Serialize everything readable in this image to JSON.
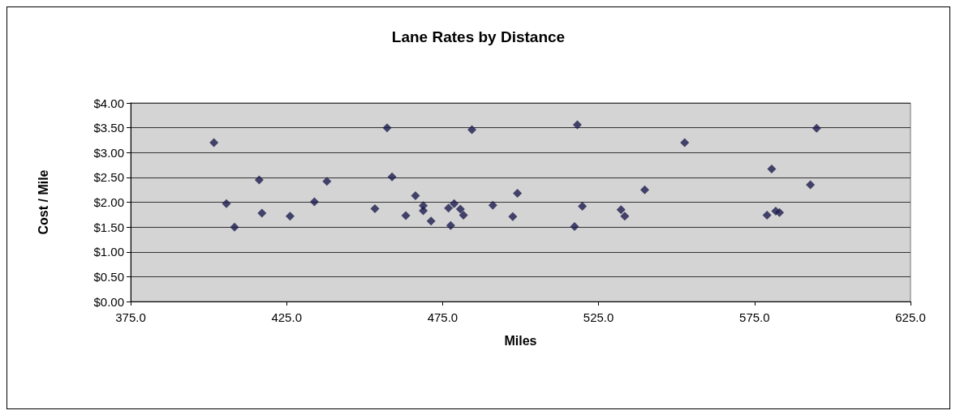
{
  "chart_data": {
    "type": "scatter",
    "title": "Lane Rates by Distance",
    "xlabel": "Miles",
    "ylabel": "Cost / Mile",
    "x": [
      401.7,
      405.7,
      408.3,
      416.2,
      417.1,
      426.1,
      433.9,
      437.9,
      453.3,
      457.2,
      458.8,
      463.2,
      466.3,
      468.8,
      468.8,
      471.3,
      484.4,
      518.2,
      552.6,
      476.9,
      478.7,
      480.7,
      481.7,
      477.6,
      491.1,
      499.0,
      497.5,
      519.8,
      517.3,
      532.2,
      533.4,
      539.8,
      594.9,
      580.5,
      592.9,
      579.0,
      581.8,
      583.0
    ],
    "values": [
      3.2,
      1.97,
      1.5,
      2.45,
      1.78,
      1.72,
      2.01,
      2.42,
      1.87,
      3.5,
      2.51,
      1.73,
      2.13,
      1.93,
      1.83,
      1.62,
      3.46,
      3.56,
      3.2,
      1.88,
      1.97,
      1.86,
      1.74,
      1.53,
      1.94,
      2.18,
      1.71,
      1.92,
      1.51,
      1.85,
      1.72,
      2.25,
      3.49,
      2.67,
      2.35,
      1.74,
      1.82,
      1.79
    ],
    "color": "#1b1b4d",
    "marker": "diamond",
    "grid": "y",
    "xlim": [
      375,
      625
    ],
    "xticks": [
      {
        "value": 375,
        "label": "375.0"
      },
      {
        "value": 425,
        "label": "425.0"
      },
      {
        "value": 475,
        "label": "475.0"
      },
      {
        "value": 525,
        "label": "525.0"
      },
      {
        "value": 575,
        "label": "575.0"
      },
      {
        "value": 625,
        "label": "625.0"
      }
    ],
    "ylim": [
      0,
      4
    ],
    "yticks": [
      {
        "value": 0,
        "label": "$0.00"
      },
      {
        "value": 0.5,
        "label": "$0.50"
      },
      {
        "value": 1,
        "label": "$1.00"
      },
      {
        "value": 1.5,
        "label": "$1.50"
      },
      {
        "value": 2,
        "label": "$2.00"
      },
      {
        "value": 2.5,
        "label": "$2.50"
      },
      {
        "value": 3,
        "label": "$3.00"
      },
      {
        "value": 3.5,
        "label": "$3.50"
      },
      {
        "value": 4,
        "label": "$4.00"
      }
    ]
  }
}
